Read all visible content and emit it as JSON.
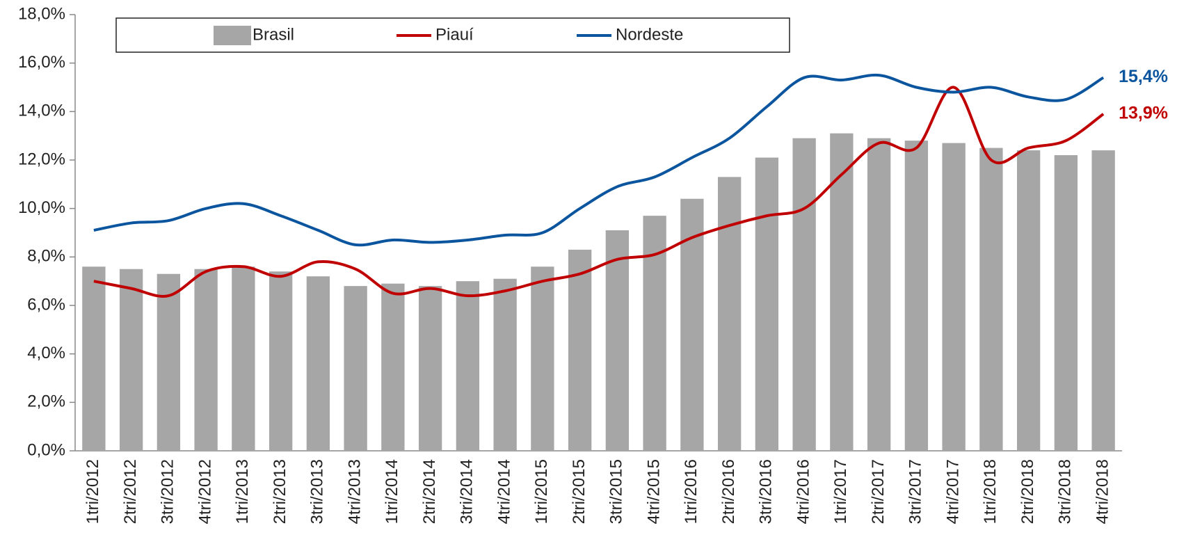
{
  "chart_data": {
    "type": "bar-line",
    "categories": [
      "1tri/2012",
      "2tri/2012",
      "3tri/2012",
      "4tri/2012",
      "1tri/2013",
      "2tri/2013",
      "3tri/2013",
      "4tri/2013",
      "1tri/2014",
      "2tri/2014",
      "3tri/2014",
      "4tri/2014",
      "1tri/2015",
      "2tri/2015",
      "3tri/2015",
      "4tri/2015",
      "1tri/2016",
      "2tri/2016",
      "3tri/2016",
      "4tri/2016",
      "1tri/2017",
      "2tri/2017",
      "3tri/2017",
      "4tri/2017",
      "1tri/2018",
      "2tri/2018",
      "3tri/2018",
      "4tri/2018"
    ],
    "series": [
      {
        "name": "Brasil",
        "type": "bar",
        "color": "#a6a6a6",
        "values": [
          7.6,
          7.5,
          7.3,
          7.5,
          7.6,
          7.4,
          7.2,
          6.8,
          6.9,
          6.8,
          7.0,
          7.1,
          7.6,
          8.3,
          9.1,
          9.7,
          10.4,
          11.3,
          12.1,
          12.9,
          13.1,
          12.9,
          12.8,
          12.7,
          12.5,
          12.4,
          12.2,
          12.4
        ]
      },
      {
        "name": "Piauí",
        "type": "line",
        "color": "#c00000",
        "values": [
          7.0,
          6.7,
          6.4,
          7.4,
          7.6,
          7.2,
          7.8,
          7.5,
          6.5,
          6.7,
          6.4,
          6.6,
          7.0,
          7.3,
          7.9,
          8.1,
          8.8,
          9.3,
          9.7,
          10.0,
          11.4,
          12.7,
          12.5,
          15.0,
          12.0,
          12.5,
          12.8,
          13.9
        ],
        "value_labels": [
          null,
          null,
          null,
          null,
          null,
          null,
          null,
          null,
          null,
          null,
          null,
          null,
          null,
          null,
          null,
          null,
          null,
          null,
          null,
          null,
          null,
          null,
          null,
          null,
          null,
          null,
          null,
          "13,9%"
        ]
      },
      {
        "name": "Nordeste",
        "type": "line",
        "color": "#0b559f",
        "values": [
          9.1,
          9.4,
          9.5,
          10.0,
          10.2,
          9.7,
          9.1,
          8.5,
          8.7,
          8.6,
          8.7,
          8.9,
          9.0,
          10.0,
          10.9,
          11.3,
          12.1,
          12.9,
          14.2,
          15.4,
          15.3,
          15.5,
          15.0,
          14.8,
          15.0,
          14.6,
          14.5,
          15.4
        ],
        "value_labels": [
          null,
          null,
          null,
          null,
          null,
          null,
          null,
          null,
          null,
          null,
          null,
          null,
          null,
          null,
          null,
          null,
          null,
          null,
          null,
          null,
          null,
          null,
          null,
          null,
          null,
          null,
          null,
          "15,4%"
        ]
      }
    ],
    "ylim": [
      0,
      18
    ],
    "yticks": [
      {
        "value": 0,
        "label": "0,0%"
      },
      {
        "value": 2,
        "label": "2,0%"
      },
      {
        "value": 4,
        "label": "4,0%"
      },
      {
        "value": 6,
        "label": "6,0%"
      },
      {
        "value": 8,
        "label": "8,0%"
      },
      {
        "value": 10,
        "label": "10,0%"
      },
      {
        "value": 12,
        "label": "12,0%"
      },
      {
        "value": 14,
        "label": "14,0%"
      },
      {
        "value": 16,
        "label": "16,0%"
      },
      {
        "value": 18,
        "label": "18,0%"
      }
    ],
    "legend": "top"
  }
}
